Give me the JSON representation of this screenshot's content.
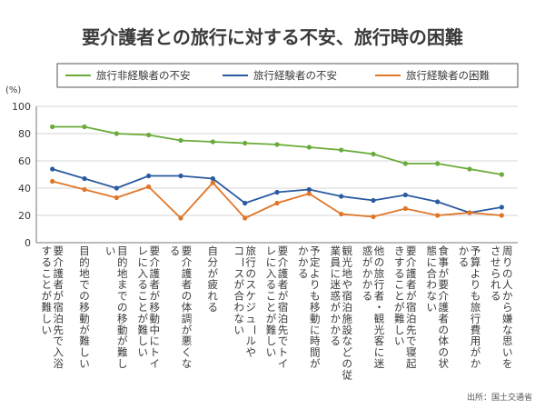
{
  "chart_data": {
    "type": "line",
    "title": "要介護者との旅行に対する不安、旅行時の困難",
    "unit_label": "(%)",
    "ylim": [
      0,
      100
    ],
    "yticks": [
      0,
      20,
      40,
      60,
      80,
      100
    ],
    "grid": true,
    "legend_position": "top",
    "categories": [
      [
        "要介護者が宿泊先で入浴",
        "することが難しい"
      ],
      [
        "目的地での移動が難しい"
      ],
      [
        "目的地までの移動が難し",
        "い"
      ],
      [
        "要介護者が移動中にトイ",
        "レに入ることが難しい"
      ],
      [
        "要介護者の体調が悪くな",
        "る"
      ],
      [
        "自分が疲れる"
      ],
      [
        "旅行のスケジュールや",
        "コースが合わない"
      ],
      [
        "要介護者が宿泊先でトイ",
        "レに入ることが難しい"
      ],
      [
        "予定よりも移動に時間が",
        "かかる"
      ],
      [
        "観光地や宿泊施設などの従",
        "業員に迷惑がかかる"
      ],
      [
        "他の旅行者・観光客に迷",
        "惑がかかる"
      ],
      [
        "要介護者が宿泊先で寝起",
        "きすることが難しい"
      ],
      [
        "食事が要介護者の体の状",
        "態に合わない"
      ],
      [
        "予算よりも旅行費用がか",
        "かる"
      ],
      [
        "周りの人から嫌な思いを",
        "させられる"
      ]
    ],
    "series": [
      {
        "name": "旅行非経験者の不安",
        "color": "#6aab3a",
        "values": [
          85,
          85,
          80,
          79,
          75,
          74,
          73,
          72,
          70,
          68,
          65,
          58,
          58,
          54,
          50
        ]
      },
      {
        "name": "旅行経験者の不安",
        "color": "#2a5aa0",
        "values": [
          54,
          47,
          40,
          49,
          49,
          47,
          29,
          37,
          39,
          34,
          31,
          35,
          30,
          22,
          26
        ]
      },
      {
        "name": "旅行経験者の困難",
        "color": "#e07628",
        "values": [
          45,
          39,
          33,
          41,
          18,
          44,
          18,
          29,
          36,
          21,
          19,
          25,
          20,
          22,
          20
        ]
      }
    ],
    "source": "出所：国土交通省"
  }
}
